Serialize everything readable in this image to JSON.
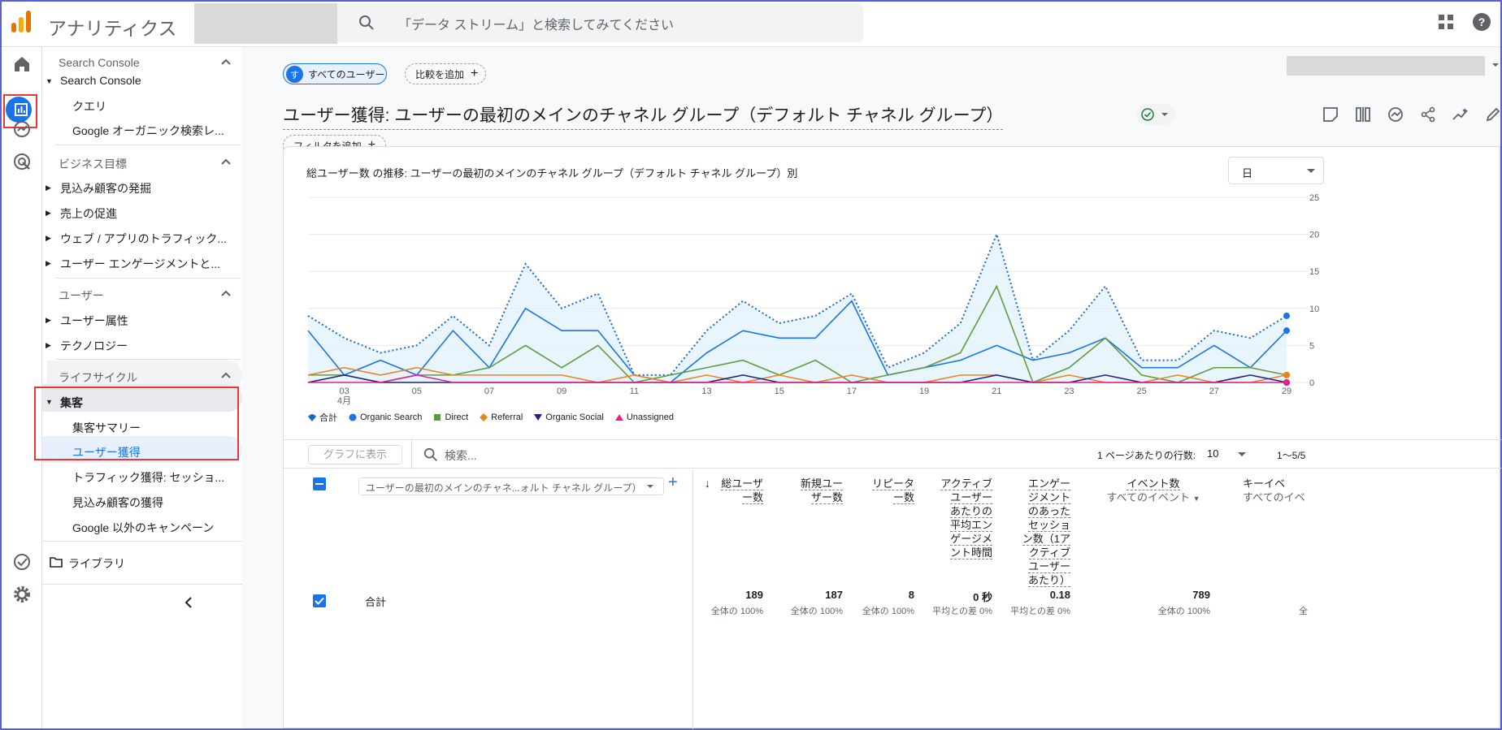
{
  "app": {
    "title": "アナリティクス",
    "search_placeholder": "「データ ストリーム」と検索してみてください"
  },
  "rail": {
    "icons": [
      "home-icon",
      "reports-icon",
      "explore-icon",
      "advertising-icon",
      "admin-check-icon",
      "settings-gear-icon"
    ]
  },
  "sidebar": {
    "sections": [
      {
        "label": "Search Console"
      },
      {
        "label": "ビジネス目標"
      },
      {
        "label": "ユーザー"
      },
      {
        "label": "ライフサイクル"
      }
    ],
    "items": {
      "sc_group": "Search Console",
      "sc_query": "クエリ",
      "sc_organic": "Google オーガニック検索レ...",
      "biz_leads": "見込み顧客の発掘",
      "biz_sales": "売上の促進",
      "biz_traffic": "ウェブ / アプリのトラフィック...",
      "biz_engage": "ユーザー エンゲージメントと...",
      "user_attr": "ユーザー属性",
      "user_tech": "テクノロジー",
      "acq_group": "集客",
      "acq_summary": "集客サマリー",
      "acq_user": "ユーザー獲得",
      "acq_traffic": "トラフィック獲得: セッショ...",
      "acq_leads": "見込み顧客の獲得",
      "acq_campaign": "Google 以外のキャンペーン",
      "library": "ライブラリ"
    }
  },
  "main": {
    "chip_users": "すべてのユーザー",
    "chip_users_initial": "す",
    "chip_compare": "比較を追加",
    "chip_filter": "フィルタを追加",
    "page_title": "ユーザー獲得: ユーザーの最初のメインのチャネル グループ（デフォルト チャネル グループ）",
    "chart_title": "総ユーザー数 の推移: ユーザーの最初のメインのチャネル グループ（デフォルト チャネル グループ）別",
    "granularity": "日",
    "table": {
      "graph_button": "グラフに表示",
      "search_placeholder": "検索...",
      "rows_label": "1 ページあたりの行数:",
      "rows_value": "10",
      "page_info": "1〜5/5",
      "dimension": "ユーザーの最初のメインのチャネ...ォルト チャネル グループ）",
      "total_label": "合計",
      "columns": [
        {
          "label": "総ユーザー数",
          "value": "189",
          "sub": "全体の 100%"
        },
        {
          "label": "新規ユーザー数",
          "value": "187",
          "sub": "全体の 100%"
        },
        {
          "label": "リピーター数",
          "value": "8",
          "sub": "全体の 100%"
        },
        {
          "label": "アクティブユーザーあたりの平均エンゲージメント時間",
          "value": "0 秒",
          "sub": "平均との差 0%"
        },
        {
          "label": "エンゲージメントのあったセッション数（1アクティブユーザーあたり）",
          "value": "0.18",
          "sub": "平均との差 0%"
        },
        {
          "label": "イベント数",
          "sublabel": "すべてのイベント",
          "value": "789",
          "sub": "全体の 100%"
        },
        {
          "label": "キーイベ",
          "sublabel": "すべてのイベ",
          "value": "",
          "sub": "全"
        }
      ]
    }
  },
  "chart_data": {
    "type": "line",
    "x": [
      "02",
      "03",
      "04",
      "05",
      "06",
      "07",
      "08",
      "09",
      "10",
      "11",
      "12",
      "13",
      "14",
      "15",
      "16",
      "17",
      "18",
      "19",
      "20",
      "21",
      "22",
      "23",
      "24",
      "25",
      "26",
      "27",
      "28",
      "29"
    ],
    "x_tick_labels": [
      "03",
      "05",
      "07",
      "09",
      "11",
      "13",
      "15",
      "17",
      "19",
      "21",
      "23",
      "25",
      "27",
      "29"
    ],
    "x_sub_label": "4月",
    "ylim": [
      0,
      25
    ],
    "y_ticks": [
      0,
      5,
      10,
      15,
      20,
      25
    ],
    "series": [
      {
        "name": "合計",
        "color": "#1a73e8",
        "style": "dotted-area",
        "values": [
          9,
          6,
          4,
          5,
          9,
          5,
          16,
          10,
          12,
          1,
          1,
          7,
          11,
          8,
          9,
          12,
          2,
          4,
          8,
          20,
          3,
          7,
          13,
          3,
          3,
          7,
          6,
          9
        ]
      },
      {
        "name": "Organic Search",
        "color": "#1a73e8",
        "values": [
          7,
          1,
          3,
          1,
          7,
          2,
          10,
          7,
          7,
          1,
          0,
          4,
          7,
          6,
          6,
          11,
          1,
          2,
          3,
          5,
          3,
          4,
          6,
          2,
          2,
          5,
          2,
          7
        ]
      },
      {
        "name": "Direct",
        "color": "#5f9c3c",
        "values": [
          1,
          1,
          0,
          1,
          1,
          2,
          5,
          2,
          5,
          0,
          1,
          2,
          3,
          1,
          3,
          0,
          1,
          2,
          4,
          13,
          0,
          2,
          6,
          1,
          0,
          2,
          2,
          1
        ]
      },
      {
        "name": "Referral",
        "color": "#e8851b",
        "values": [
          1,
          2,
          1,
          2,
          1,
          1,
          1,
          1,
          0,
          1,
          0,
          1,
          0,
          1,
          0,
          1,
          0,
          0,
          1,
          1,
          0,
          1,
          0,
          0,
          1,
          0,
          0,
          1
        ]
      },
      {
        "name": "Organic Social",
        "color": "#1a237e",
        "values": [
          0,
          1,
          0,
          0,
          0,
          0,
          0,
          0,
          0,
          0,
          0,
          0,
          1,
          0,
          0,
          0,
          0,
          0,
          0,
          1,
          0,
          0,
          1,
          0,
          0,
          0,
          1,
          0
        ]
      },
      {
        "name": "Unassigned",
        "color": "#e91e90",
        "values": [
          0,
          0,
          0,
          1,
          0,
          0,
          0,
          0,
          0,
          0,
          0,
          0,
          0,
          0,
          0,
          0,
          0,
          0,
          0,
          0,
          0,
          0,
          0,
          0,
          0,
          0,
          0,
          0
        ]
      }
    ]
  }
}
